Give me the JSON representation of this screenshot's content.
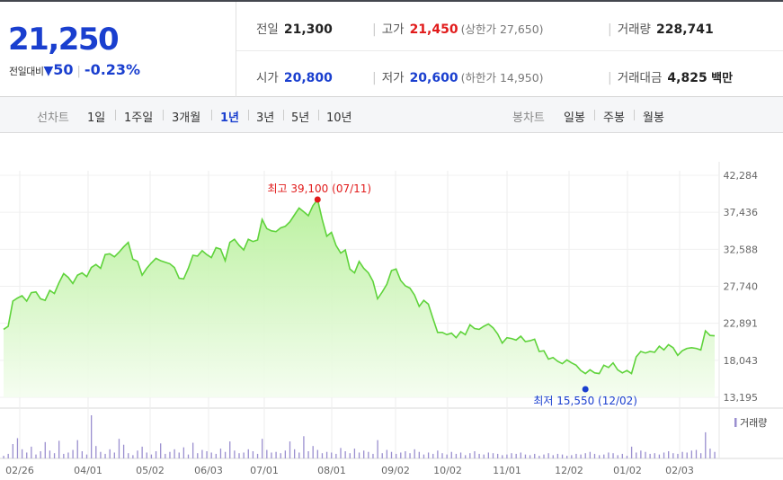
{
  "quote": {
    "price": "21,250",
    "change_label": "전일대비",
    "change_symbol": "▼",
    "change_value": "50",
    "change_pct": "-0.23%",
    "prev_close_label": "전일",
    "prev_close": "21,300",
    "high_label": "고가",
    "high": "21,450",
    "upper_limit": "(상한가 27,650)",
    "volume_label": "거래량",
    "volume": "228,741",
    "open_label": "시가",
    "open": "20,800",
    "low_label": "저가",
    "low": "20,600",
    "lower_limit": "(하한가 14,950)",
    "amount_label": "거래대금",
    "amount": "4,825",
    "amount_unit": "백만"
  },
  "colors": {
    "up": "#e11b1b",
    "down": "#1a3fcf",
    "line": "#5fd33b",
    "volume": "#9a8fcf"
  },
  "tabs": {
    "line_chart_label": "선차트",
    "periods": [
      "1일",
      "1주일",
      "3개월",
      "1년",
      "3년",
      "5년",
      "10년"
    ],
    "active_period": "1년",
    "candle_chart_label": "봉차트",
    "candle_periods": [
      "일봉",
      "주봉",
      "월봉"
    ]
  },
  "chart_data": {
    "type": "area",
    "y_ticks": [
      "42,284",
      "37,436",
      "32,588",
      "27,740",
      "22,891",
      "18,043",
      "13,195"
    ],
    "ylim": [
      13195,
      42284
    ],
    "x_ticks": [
      "02/26",
      "04/01",
      "05/02",
      "06/03",
      "07/01",
      "08/01",
      "09/02",
      "10/02",
      "11/01",
      "12/02",
      "01/02",
      "02/03"
    ],
    "high_annotation": "최고 39,100 (07/11)",
    "low_annotation": "최저 15,550 (12/02)",
    "high": 39100,
    "low": 15550,
    "legend_volume": "거래량",
    "series": [
      {
        "values": [
          22100,
          22500,
          25800,
          26200,
          26500,
          25800,
          26900,
          27000,
          26100,
          25900,
          27200,
          26800,
          28200,
          29400,
          28900,
          28100,
          29200,
          29500,
          29000,
          30200,
          30600,
          30100,
          31900,
          32000,
          31600,
          32200,
          32900,
          33500,
          31300,
          31000,
          29200,
          30100,
          30800,
          31400,
          31100,
          30900,
          30700,
          30200,
          28800,
          28700,
          30100,
          31800,
          31700,
          32400,
          31900,
          31500,
          32800,
          32600,
          31100,
          33500,
          33900,
          33100,
          32500,
          33900,
          33600,
          33800,
          36500,
          35300,
          35000,
          34900,
          35400,
          35600,
          36200,
          37100,
          38000,
          37500,
          37000,
          38300,
          39100,
          36500,
          34300,
          34800,
          33100,
          32100,
          32500,
          30000,
          29500,
          31000,
          30100,
          29500,
          28400,
          26100,
          27000,
          28000,
          29800,
          30000,
          28500,
          27800,
          27500,
          26600,
          25100,
          25900,
          25400,
          23500,
          21700,
          21700,
          21400,
          21600,
          21000,
          21800,
          21400,
          22700,
          22200,
          22100,
          22500,
          22800,
          22300,
          21500,
          20300,
          21000,
          20900,
          20700,
          21200,
          20500,
          20600,
          20800,
          19200,
          19300,
          18200,
          18400,
          17900,
          17600,
          18100,
          17700,
          17400,
          16700,
          16300,
          16800,
          16400,
          16300,
          17400,
          17100,
          17700,
          16800,
          16400,
          16700,
          16300,
          18500,
          19200,
          19000,
          19200,
          19100,
          19900,
          19400,
          20100,
          19700,
          18700,
          19300,
          19600,
          19700,
          19600,
          19400,
          21900,
          21300,
          21250
        ]
      },
      {
        "name": "거래량",
        "values": [
          4,
          7,
          22,
          31,
          14,
          9,
          18,
          6,
          11,
          25,
          12,
          8,
          27,
          7,
          9,
          13,
          28,
          11,
          6,
          66,
          19,
          10,
          7,
          14,
          9,
          30,
          21,
          8,
          5,
          12,
          18,
          9,
          6,
          11,
          23,
          7,
          10,
          14,
          9,
          17,
          6,
          24,
          8,
          13,
          11,
          9,
          7,
          15,
          10,
          26,
          12,
          8,
          9,
          14,
          11,
          7,
          30,
          13,
          9,
          10,
          8,
          12,
          26,
          14,
          9,
          34,
          11,
          19,
          13,
          8,
          10,
          9,
          7,
          16,
          11,
          8,
          15,
          9,
          12,
          10,
          7,
          28,
          8,
          13,
          10,
          7,
          9,
          11,
          8,
          14,
          10,
          6,
          9,
          7,
          12,
          8,
          6,
          10,
          7,
          9,
          5,
          8,
          11,
          7,
          6,
          9,
          8,
          7,
          5,
          6,
          8,
          7,
          9,
          6,
          5,
          7,
          4,
          6,
          8,
          5,
          7,
          6,
          4,
          5,
          7,
          6,
          8,
          10,
          7,
          5,
          6,
          9,
          8,
          5,
          7,
          4,
          18,
          9,
          12,
          10,
          7,
          8,
          6,
          9,
          11,
          8,
          7,
          10,
          9,
          12,
          13,
          8,
          40,
          15,
          10
        ]
      }
    ]
  }
}
